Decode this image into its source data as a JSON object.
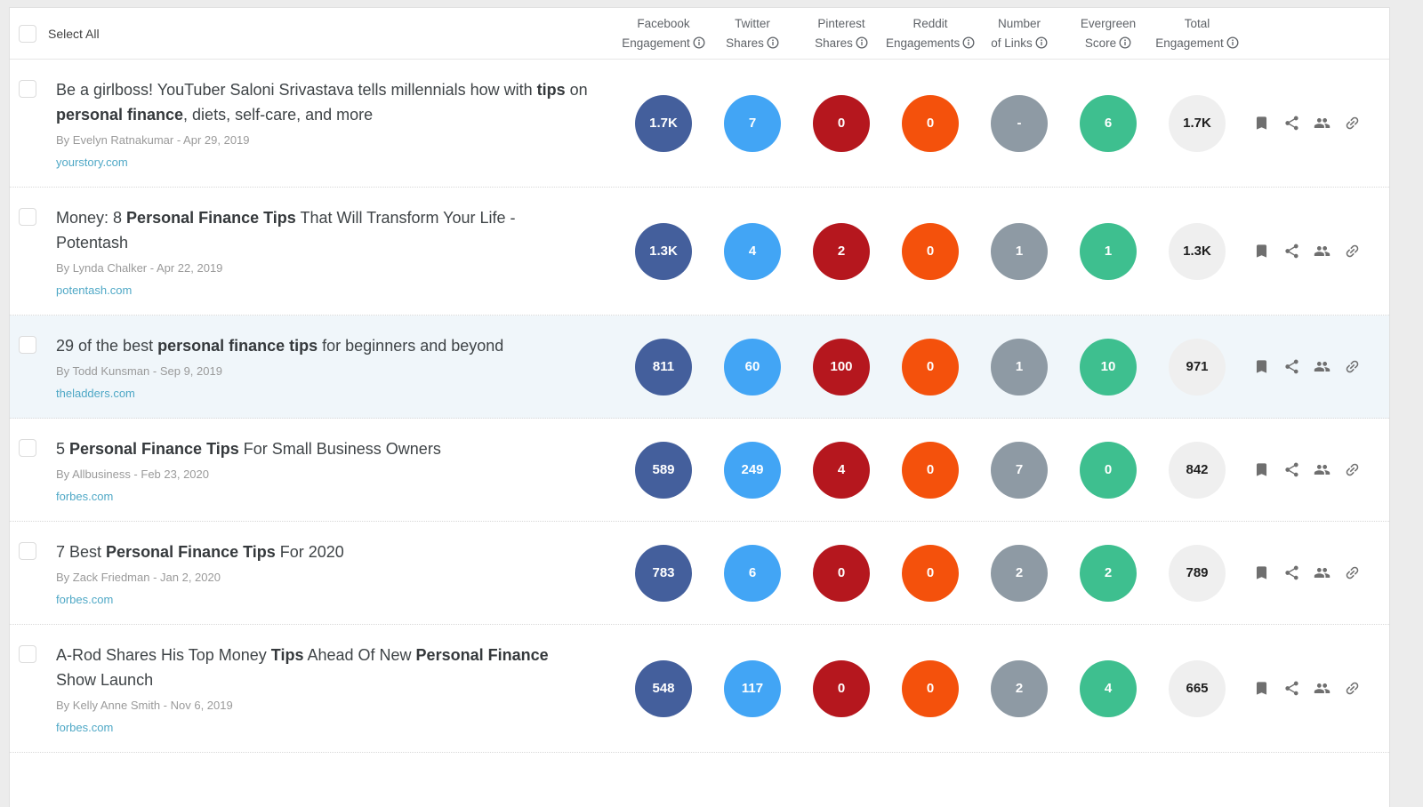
{
  "app": {
    "background": "#ececec",
    "card_border": "#e0e0e0",
    "highlight_row_bg": "#f0f6fa"
  },
  "header": {
    "select_all": "Select All",
    "columns": [
      {
        "id": "facebook-engagement",
        "line1": "Facebook",
        "line2": "Engagement",
        "info": false
      },
      {
        "id": "twitter-shares",
        "line1": "Twitter",
        "line2": "Shares",
        "info": false
      },
      {
        "id": "pinterest-shares",
        "line1": "Pinterest",
        "line2": "Shares",
        "info": false
      },
      {
        "id": "reddit-engagements",
        "line1": "Reddit",
        "line2": "Engagements",
        "info": false
      },
      {
        "id": "number-of-links",
        "line1": "Number",
        "line2": "of Links",
        "info": false
      },
      {
        "id": "evergreen-score",
        "line1": "Evergreen",
        "line2": "Score",
        "info": true
      },
      {
        "id": "total-engagement",
        "line1": "Total",
        "line2": "Engagement",
        "info": false
      }
    ]
  },
  "metric_styles": [
    {
      "name": "facebook-engagement",
      "bg": "#445f9c",
      "fg": "#ffffff"
    },
    {
      "name": "twitter-shares",
      "bg": "#42a5f5",
      "fg": "#ffffff"
    },
    {
      "name": "pinterest-shares",
      "bg": "#b5171e",
      "fg": "#ffffff"
    },
    {
      "name": "reddit-engagements",
      "bg": "#f4510c",
      "fg": "#ffffff"
    },
    {
      "name": "number-of-links",
      "bg": "#8e9aa4",
      "fg": "#ffffff"
    },
    {
      "name": "evergreen-score",
      "bg": "#3ebf8f",
      "fg": "#ffffff"
    },
    {
      "name": "total-engagement",
      "bg": "#efefef",
      "fg": "#1f1f1f"
    }
  ],
  "actions": [
    "bookmark",
    "share",
    "audience",
    "link"
  ],
  "rows": [
    {
      "title_segments": [
        {
          "text": "Be a girlboss! YouTuber Saloni Srivastava tells millennials how with ",
          "bold": false
        },
        {
          "text": "tips",
          "bold": true
        },
        {
          "text": " on ",
          "bold": false
        },
        {
          "text": "personal finance",
          "bold": true
        },
        {
          "text": ", diets, self-care, and more",
          "bold": false
        }
      ],
      "byline": "By Evelyn Ratnakumar - Apr 29, 2019",
      "domain": "yourstory.com",
      "metrics": [
        "1.7K",
        "7",
        "0",
        "0",
        "-",
        "6",
        "1.7K"
      ],
      "highlighted": false
    },
    {
      "title_segments": [
        {
          "text": "Money: 8 ",
          "bold": false
        },
        {
          "text": "Personal Finance Tips",
          "bold": true
        },
        {
          "text": " That Will Transform Your Life - Potentash",
          "bold": false
        }
      ],
      "byline": "By Lynda Chalker - Apr 22, 2019",
      "domain": "potentash.com",
      "metrics": [
        "1.3K",
        "4",
        "2",
        "0",
        "1",
        "1",
        "1.3K"
      ],
      "highlighted": false
    },
    {
      "title_segments": [
        {
          "text": "29 of the best ",
          "bold": false
        },
        {
          "text": "personal finance tips",
          "bold": true
        },
        {
          "text": " for beginners and beyond",
          "bold": false
        }
      ],
      "byline": "By Todd Kunsman - Sep 9, 2019",
      "domain": "theladders.com",
      "metrics": [
        "811",
        "60",
        "100",
        "0",
        "1",
        "10",
        "971"
      ],
      "highlighted": true
    },
    {
      "title_segments": [
        {
          "text": "5 ",
          "bold": false
        },
        {
          "text": "Personal Finance Tips",
          "bold": true
        },
        {
          "text": " For Small Business Owners",
          "bold": false
        }
      ],
      "byline": "By Allbusiness - Feb 23, 2020",
      "domain": "forbes.com",
      "metrics": [
        "589",
        "249",
        "4",
        "0",
        "7",
        "0",
        "842"
      ],
      "highlighted": false
    },
    {
      "title_segments": [
        {
          "text": "7 Best ",
          "bold": false
        },
        {
          "text": "Personal Finance Tips",
          "bold": true
        },
        {
          "text": " For 2020",
          "bold": false
        }
      ],
      "byline": "By Zack Friedman - Jan 2, 2020",
      "domain": "forbes.com",
      "metrics": [
        "783",
        "6",
        "0",
        "0",
        "2",
        "2",
        "789"
      ],
      "highlighted": false
    },
    {
      "title_segments": [
        {
          "text": "A-Rod Shares His Top Money ",
          "bold": false
        },
        {
          "text": "Tips",
          "bold": true
        },
        {
          "text": " Ahead Of New ",
          "bold": false
        },
        {
          "text": "Personal Finance",
          "bold": true
        },
        {
          "text": " Show Launch",
          "bold": false
        }
      ],
      "byline": "By Kelly Anne Smith - Nov 6, 2019",
      "domain": "forbes.com",
      "metrics": [
        "548",
        "117",
        "0",
        "0",
        "2",
        "4",
        "665"
      ],
      "highlighted": false
    }
  ]
}
